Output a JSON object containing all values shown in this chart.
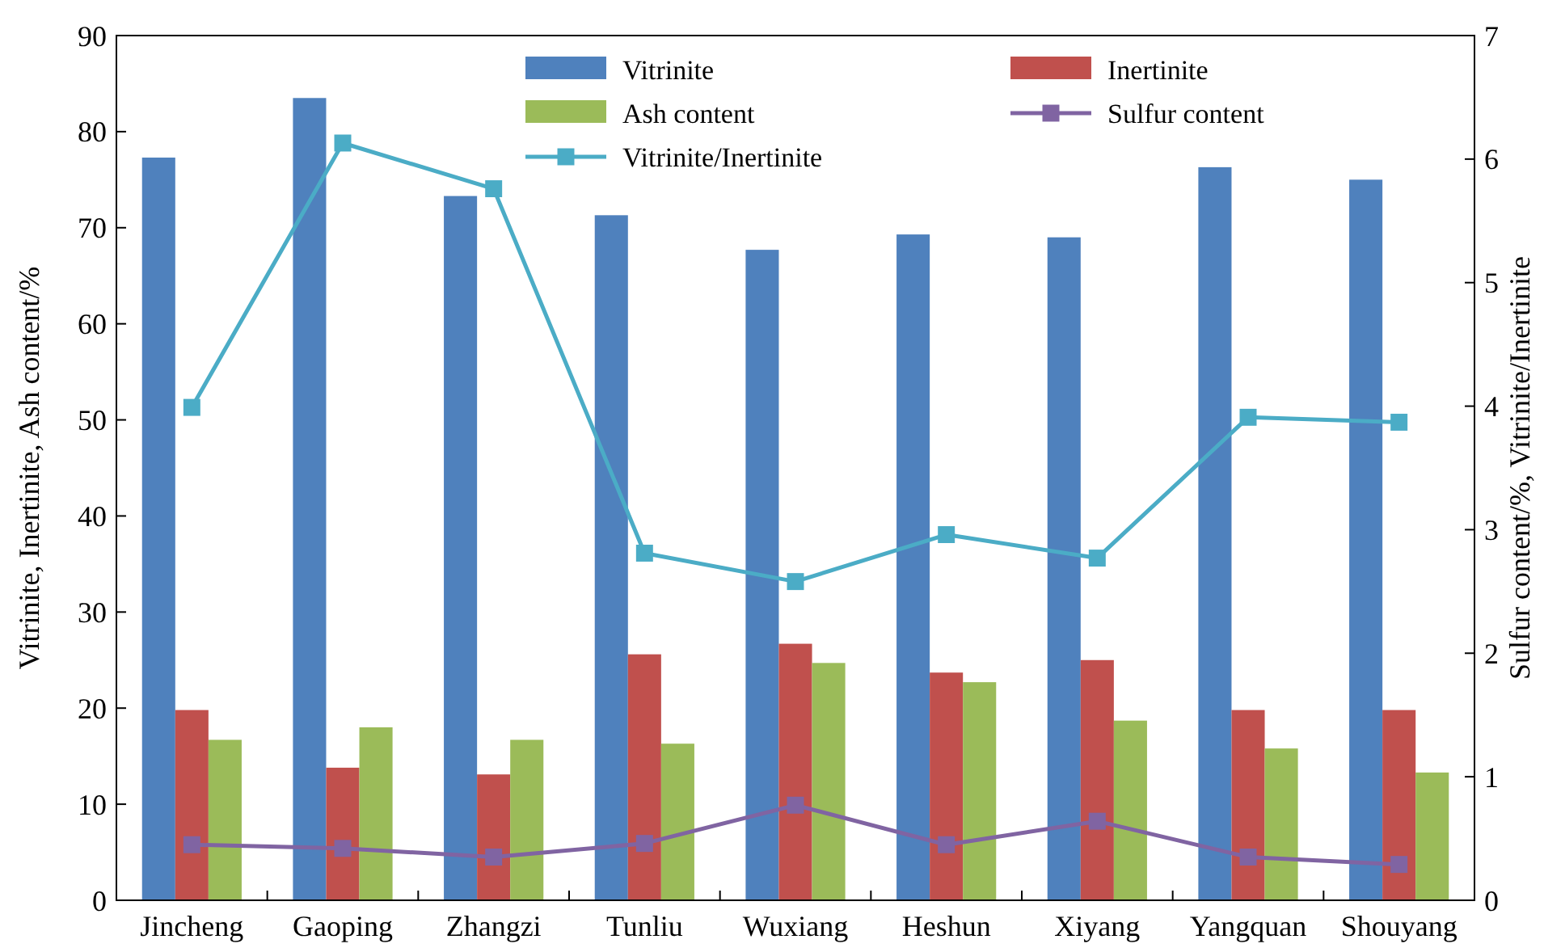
{
  "chart_data": {
    "type": "bar",
    "categories": [
      "Jincheng",
      "Gaoping",
      "Zhangzi",
      "Tunliu",
      "Wuxiang",
      "Heshun",
      "Xiyang",
      "Yangquan",
      "Shouyang"
    ],
    "ylabel": "Vitrinite, Inertinite, Ash content/%",
    "y2label": "Sulfur content/%, Vitrinite/Inertinite",
    "ylim": [
      0,
      90
    ],
    "yticks": [
      0,
      10,
      20,
      30,
      40,
      50,
      60,
      70,
      80,
      90
    ],
    "y2lim": [
      0,
      7
    ],
    "y2ticks": [
      0,
      1,
      2,
      3,
      4,
      5,
      6,
      7
    ],
    "legend": "top",
    "grid": false,
    "series": [
      {
        "name": "Vitrinite",
        "color": "#4f81bd",
        "values": [
          77.3,
          83.5,
          73.3,
          71.3,
          67.7,
          69.3,
          69,
          76.3,
          75
        ]
      },
      {
        "name": "Inertinite",
        "color": "#c0504d",
        "values": [
          19.8,
          13.8,
          13.1,
          25.6,
          26.7,
          23.7,
          25,
          19.8,
          19.8
        ]
      },
      {
        "name": "Ash content",
        "color": "#9bbb59",
        "values": [
          16.7,
          18,
          16.7,
          16.3,
          24.7,
          22.7,
          18.7,
          15.8,
          13.3
        ]
      },
      {
        "name": "Sulfur content",
        "type": "line",
        "axis": "y2",
        "marker": "square",
        "color": "#8064a2",
        "values": [
          0.45,
          0.42,
          0.35,
          0.46,
          0.77,
          0.45,
          0.64,
          0.35,
          0.29
        ]
      },
      {
        "name": "Vitrinite/Inertinite",
        "type": "line",
        "axis": "y2",
        "marker": "square",
        "color": "#4bacc6",
        "values": [
          3.99,
          6.13,
          5.76,
          2.81,
          2.58,
          2.96,
          2.77,
          3.91,
          3.87
        ]
      }
    ]
  }
}
